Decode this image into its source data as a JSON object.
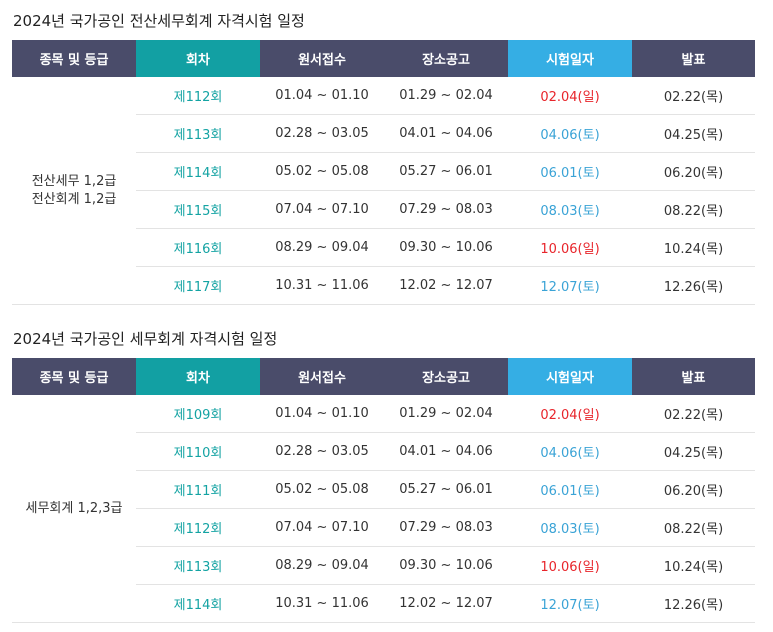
{
  "headers": [
    "종목 및 등급",
    "회차",
    "원서접수",
    "장소공고",
    "시험일자",
    "발표"
  ],
  "sections": [
    {
      "title": "2024년 국가공인 전산세무회계 자격시험 일정",
      "grade": [
        "전산세무 1,2급",
        "전산회계 1,2급"
      ],
      "rows": [
        {
          "round": "제112회",
          "application": "01.04 ~ 01.10",
          "venue": "01.29 ~ 02.04",
          "exam": "02.04(일)",
          "exam_color": "red",
          "result": "02.22(목)"
        },
        {
          "round": "제113회",
          "application": "02.28 ~ 03.05",
          "venue": "04.01 ~ 04.06",
          "exam": "04.06(토)",
          "exam_color": "blue",
          "result": "04.25(목)"
        },
        {
          "round": "제114회",
          "application": "05.02 ~ 05.08",
          "venue": "05.27 ~ 06.01",
          "exam": "06.01(토)",
          "exam_color": "blue",
          "result": "06.20(목)"
        },
        {
          "round": "제115회",
          "application": "07.04 ~ 07.10",
          "venue": "07.29 ~ 08.03",
          "exam": "08.03(토)",
          "exam_color": "blue",
          "result": "08.22(목)"
        },
        {
          "round": "제116회",
          "application": "08.29 ~ 09.04",
          "venue": "09.30 ~ 10.06",
          "exam": "10.06(일)",
          "exam_color": "red",
          "result": "10.24(목)"
        },
        {
          "round": "제117회",
          "application": "10.31 ~ 11.06",
          "venue": "12.02 ~ 12.07",
          "exam": "12.07(토)",
          "exam_color": "blue",
          "result": "12.26(목)"
        }
      ]
    },
    {
      "title": "2024년 국가공인 세무회계 자격시험 일정",
      "grade": [
        "세무회계 1,2,3급"
      ],
      "rows": [
        {
          "round": "제109회",
          "application": "01.04 ~ 01.10",
          "venue": "01.29 ~ 02.04",
          "exam": "02.04(일)",
          "exam_color": "red",
          "result": "02.22(목)"
        },
        {
          "round": "제110회",
          "application": "02.28 ~ 03.05",
          "venue": "04.01 ~ 04.06",
          "exam": "04.06(토)",
          "exam_color": "blue",
          "result": "04.25(목)"
        },
        {
          "round": "제111회",
          "application": "05.02 ~ 05.08",
          "venue": "05.27 ~ 06.01",
          "exam": "06.01(토)",
          "exam_color": "blue",
          "result": "06.20(목)"
        },
        {
          "round": "제112회",
          "application": "07.04 ~ 07.10",
          "venue": "07.29 ~ 08.03",
          "exam": "08.03(토)",
          "exam_color": "blue",
          "result": "08.22(목)"
        },
        {
          "round": "제113회",
          "application": "08.29 ~ 09.04",
          "venue": "09.30 ~ 10.06",
          "exam": "10.06(일)",
          "exam_color": "red",
          "result": "10.24(목)"
        },
        {
          "round": "제114회",
          "application": "10.31 ~ 11.06",
          "venue": "12.02 ~ 12.07",
          "exam": "12.07(토)",
          "exam_color": "blue",
          "result": "12.26(목)"
        }
      ]
    }
  ],
  "colors": {
    "header_dark": "#4a4c6a",
    "header_teal": "#12a0a3",
    "header_sky": "#35aee4",
    "round_text": "#14a3a3",
    "sunday_text": "#e8252b",
    "saturday_text": "#3aa3d6"
  }
}
